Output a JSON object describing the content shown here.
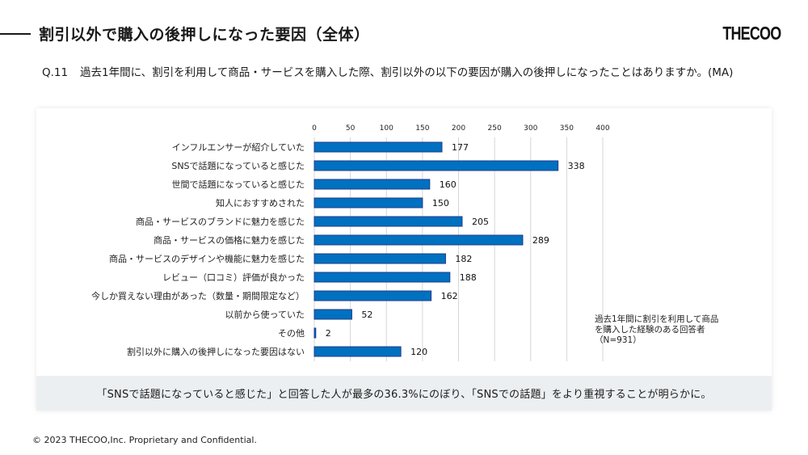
{
  "header": {
    "title": "割引以外で購入の後押しになった要因（全体）",
    "logo": "THECOO"
  },
  "question": {
    "number": "Q.11",
    "text": "過去1年間に、割引を利用して商品・サービスを購入した際、割引以外の以下の要因が購入の後押しになったことはありますか。(MA)"
  },
  "chart_data": {
    "type": "bar",
    "orientation": "horizontal",
    "title": "",
    "xlabel": "",
    "ylabel": "",
    "xlim": [
      0,
      400
    ],
    "xticks": [
      0,
      50,
      100,
      150,
      200,
      250,
      300,
      350,
      400
    ],
    "grid": true,
    "categories": [
      "インフルエンサーが紹介していた",
      "SNSで話題になっていると感じた",
      "世間で話題になっていると感じた",
      "知人におすすめされた",
      "商品・サービスのブランドに魅力を感じた",
      "商品・サービスの価格に魅力を感じた",
      "商品・サービスのデザインや機能に魅力を感じた",
      "レビュー（口コミ）評価が良かった",
      "今しか買えない理由があった（数量・期間限定など）",
      "以前から使っていた",
      "その他",
      "割引以外に購入の後押しになった要因はない"
    ],
    "values": [
      177,
      338,
      160,
      150,
      205,
      289,
      182,
      188,
      162,
      52,
      2,
      120
    ],
    "bar_color": "#0070C0",
    "bar_edge_color": "#1F3C88",
    "annotation": "過去1年間に割引を利用して商品\nを購入した経験のある回答者\n（N=931）"
  },
  "summary": {
    "text": "「SNSで話題になっていると感じた」と回答した人が最多の36.3%にのぼり、「SNSでの話題」をより重視することが明らかに。"
  },
  "footer": {
    "copyright": "© 2023 THECOO,Inc. Proprietary and Confidential."
  }
}
